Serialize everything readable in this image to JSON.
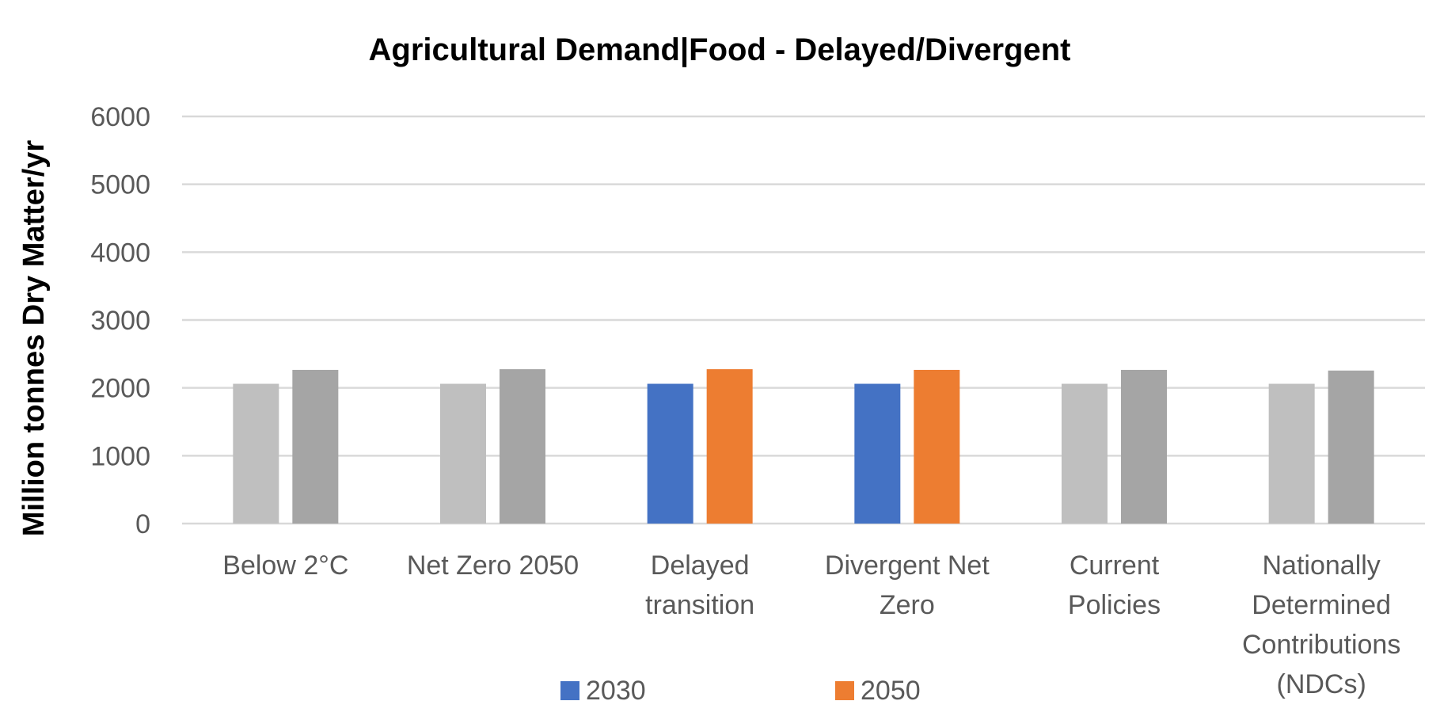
{
  "chart_data": {
    "type": "bar",
    "title": "Agricultural Demand|Food - Delayed/Divergent",
    "xlabel": "",
    "ylabel": "Million tonnes Dry Matter/yr",
    "ylim": [
      0,
      6000
    ],
    "yticks": [
      0,
      1000,
      2000,
      3000,
      4000,
      5000,
      6000
    ],
    "grid": true,
    "legend_position": "bottom",
    "categories": [
      [
        "Below 2°C"
      ],
      [
        "Net Zero 2050"
      ],
      [
        "Delayed",
        "transition"
      ],
      [
        "Divergent Net",
        "Zero"
      ],
      [
        "Current",
        "Policies"
      ],
      [
        "Nationally",
        "Determined",
        "Contributions",
        "(NDCs)"
      ]
    ],
    "highlighted_categories": [
      2,
      3
    ],
    "series": [
      {
        "name": "2030",
        "values": [
          2060,
          2060,
          2060,
          2060,
          2060,
          2060
        ],
        "color": "#4472c4",
        "muted_color": "#bfbfbf"
      },
      {
        "name": "2050",
        "values": [
          2265,
          2275,
          2275,
          2265,
          2265,
          2255
        ],
        "color": "#ed7d31",
        "muted_color": "#a5a5a5"
      }
    ]
  }
}
